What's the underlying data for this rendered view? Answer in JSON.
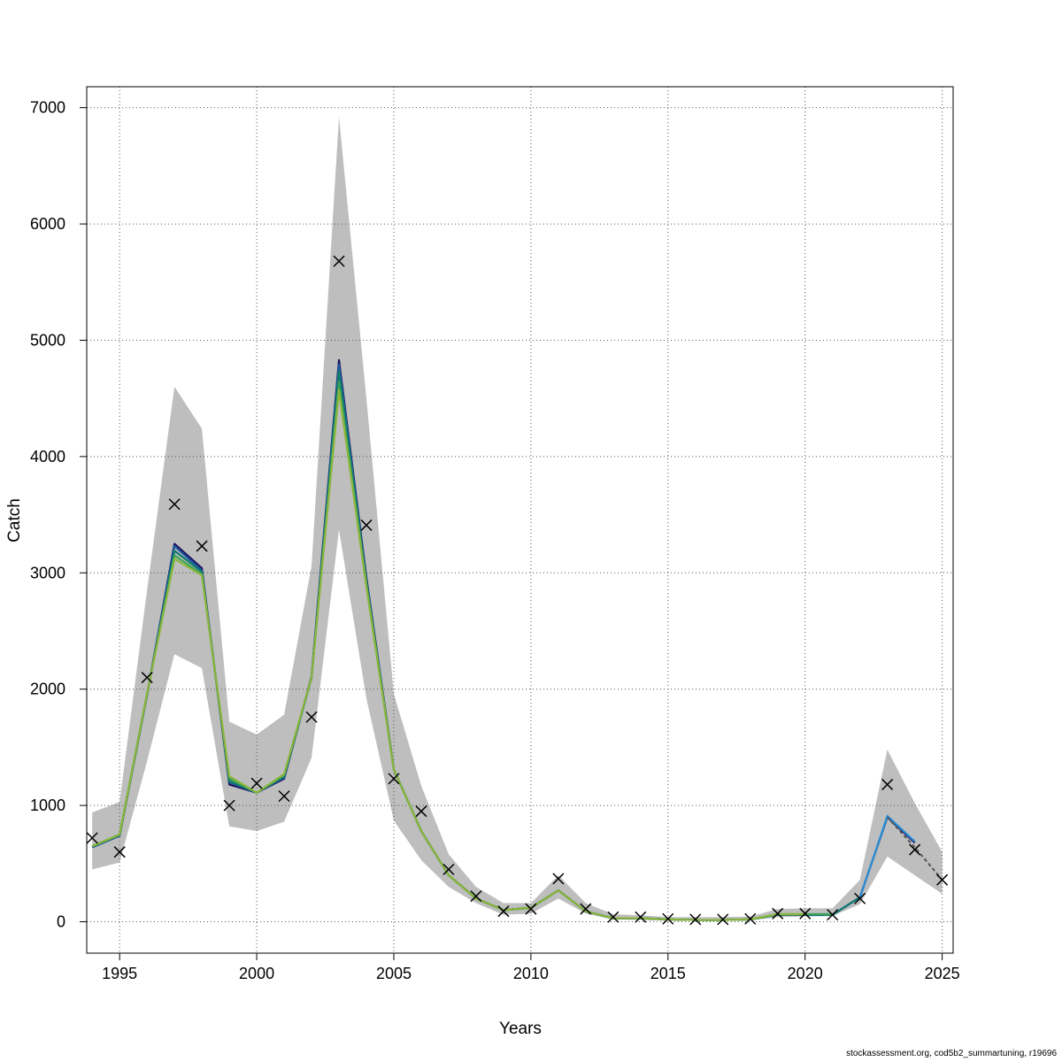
{
  "chart_data": {
    "type": "line",
    "xlabel": "Years",
    "ylabel": "Catch",
    "xlim": [
      1993.8,
      2025.4
    ],
    "ylim": [
      -270,
      7180
    ],
    "x_ticks": [
      1995,
      2000,
      2005,
      2010,
      2015,
      2020,
      2025
    ],
    "y_ticks": [
      0,
      1000,
      2000,
      3000,
      4000,
      5000,
      6000,
      7000
    ],
    "grid": true,
    "band_color": "#bebebe",
    "confidence_band": {
      "x": [
        1994,
        1995,
        1996,
        1997,
        1998,
        1999,
        2000,
        2001,
        2002,
        2003,
        2004,
        2005,
        2006,
        2007,
        2008,
        2009,
        2010,
        2011,
        2012,
        2013,
        2014,
        2015,
        2016,
        2017,
        2018,
        2019,
        2020,
        2021,
        2022,
        2023,
        2024,
        2025
      ],
      "lower": [
        450,
        510,
        1380,
        2300,
        2180,
        820,
        780,
        860,
        1410,
        3370,
        1920,
        870,
        530,
        300,
        160,
        60,
        70,
        200,
        70,
        20,
        15,
        10,
        10,
        10,
        12,
        40,
        45,
        50,
        150,
        560,
        400,
        240
      ],
      "upper": [
        940,
        1030,
        2850,
        4600,
        4240,
        1720,
        1610,
        1780,
        3060,
        6920,
        4500,
        1960,
        1170,
        580,
        300,
        160,
        160,
        400,
        160,
        65,
        55,
        40,
        40,
        40,
        45,
        110,
        115,
        115,
        360,
        1480,
        1020,
        600
      ]
    },
    "observed": {
      "name": "observed catch",
      "x": [
        1994,
        1995,
        1996,
        1997,
        1998,
        1999,
        2000,
        2001,
        2002,
        2003,
        2004,
        2005,
        2006,
        2007,
        2008,
        2009,
        2010,
        2011,
        2012,
        2013,
        2014,
        2015,
        2016,
        2017,
        2018,
        2019,
        2020,
        2021,
        2022,
        2023,
        2024,
        2025
      ],
      "y": [
        720,
        600,
        2100,
        3590,
        3230,
        1000,
        1190,
        1080,
        1760,
        5680,
        3410,
        1230,
        950,
        450,
        220,
        90,
        110,
        370,
        110,
        40,
        40,
        25,
        20,
        20,
        25,
        70,
        70,
        60,
        200,
        1180,
        620,
        360
      ]
    },
    "series": [
      {
        "name": "",
        "color": "#1b1460",
        "x": [
          1994,
          1995,
          1996,
          1997,
          1998,
          1999,
          2000,
          2001,
          2002,
          2003,
          2004,
          2005,
          2006,
          2007,
          2008,
          2009,
          2010,
          2011,
          2012,
          2013,
          2014,
          2015,
          2016,
          2017,
          2018,
          2019,
          2020,
          2021,
          2022,
          2023,
          2024
        ],
        "y": [
          640,
          740,
          1950,
          3250,
          3040,
          1180,
          1110,
          1230,
          2110,
          4830,
          2960,
          1310,
          780,
          400,
          200,
          100,
          120,
          270,
          90,
          30,
          30,
          20,
          15,
          15,
          20,
          60,
          60,
          60,
          210,
          900,
          680
        ]
      },
      {
        "name": "",
        "color": "#1f5a9e",
        "x": [
          1994,
          1995,
          1996,
          1997,
          1998,
          1999,
          2000,
          2001,
          2002,
          2003,
          2004,
          2005,
          2006,
          2007,
          2008,
          2009,
          2010,
          2011,
          2012,
          2013,
          2014,
          2015,
          2016,
          2017,
          2018,
          2019,
          2020,
          2021,
          2022,
          2023
        ],
        "y": [
          640,
          740,
          1950,
          3230,
          3020,
          1200,
          1110,
          1240,
          2100,
          4790,
          2940,
          1310,
          780,
          400,
          200,
          100,
          120,
          270,
          90,
          30,
          30,
          20,
          15,
          15,
          20,
          60,
          60,
          60,
          210,
          900
        ]
      },
      {
        "name": "",
        "color": "#0f7a6e",
        "x": [
          1994,
          1995,
          1996,
          1997,
          1998,
          1999,
          2000,
          2001,
          2002,
          2003,
          2004,
          2005,
          2006,
          2007,
          2008,
          2009,
          2010,
          2011,
          2012,
          2013,
          2014,
          2015,
          2016,
          2017,
          2018,
          2019,
          2020,
          2021,
          2022
        ],
        "y": [
          645,
          745,
          1955,
          3190,
          3010,
          1210,
          1110,
          1250,
          2100,
          4740,
          2920,
          1310,
          780,
          400,
          200,
          100,
          120,
          270,
          90,
          30,
          30,
          20,
          15,
          15,
          20,
          60,
          60,
          60,
          210
        ]
      },
      {
        "name": "",
        "color": "#3aa357",
        "x": [
          1994,
          1995,
          1996,
          1997,
          1998,
          1999,
          2000,
          2001,
          2002,
          2003,
          2004,
          2005,
          2006,
          2007,
          2008,
          2009,
          2010,
          2011,
          2012,
          2013,
          2014,
          2015,
          2016,
          2017,
          2018,
          2019,
          2020,
          2021
        ],
        "y": [
          650,
          750,
          1960,
          3150,
          2990,
          1230,
          1110,
          1260,
          2100,
          4640,
          2900,
          1310,
          780,
          400,
          200,
          100,
          120,
          270,
          90,
          30,
          30,
          20,
          15,
          15,
          20,
          65,
          65,
          65
        ]
      },
      {
        "name": "",
        "color": "#8ab53a",
        "x": [
          1994,
          1995,
          1996,
          1997,
          1998,
          1999,
          2000,
          2001,
          2002,
          2003,
          2004,
          2005,
          2006,
          2007,
          2008,
          2009,
          2010,
          2011,
          2012,
          2013,
          2014,
          2015,
          2016,
          2017,
          2018,
          2019,
          2020
        ],
        "y": [
          650,
          750,
          1960,
          3120,
          2980,
          1250,
          1110,
          1270,
          2100,
          4570,
          2880,
          1310,
          780,
          400,
          200,
          100,
          120,
          270,
          90,
          30,
          30,
          20,
          15,
          15,
          20,
          65,
          65
        ]
      },
      {
        "name": "",
        "color": "#2b8fd6",
        "x": [
          2022,
          2023,
          2024
        ],
        "y": [
          205,
          910,
          690
        ]
      }
    ],
    "forecast": {
      "name": "",
      "color": "#555555",
      "x": [
        2023,
        2024,
        2025
      ],
      "y": [
        900,
        640,
        360
      ]
    }
  },
  "footer": {
    "credit": "stockassessment.org, cod5b2_summartuning, r19696"
  }
}
